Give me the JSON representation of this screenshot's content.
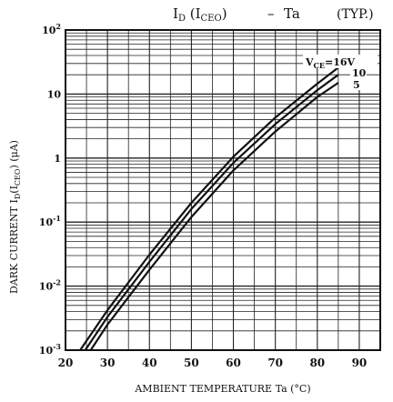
{
  "chart_data": {
    "type": "line",
    "title_main": "I",
    "title_main_sub": "D",
    "title_paren": "(I",
    "title_paren_sub": "CEO",
    "title_paren_close": ")",
    "title_dash": "–",
    "title_var": "Ta",
    "title_note": "(TYP.)",
    "xlabel": "AMBIENT TEMPERATURE   Ta   (°C)",
    "ylabel_text": "DARK CURRENT",
    "ylabel_var": "I",
    "ylabel_var_sub": "D",
    "ylabel_paren": "(I",
    "ylabel_paren_sub": "CEO",
    "ylabel_paren_close": ")",
    "ylabel_unit": "(μA)",
    "xlim": [
      20,
      95
    ],
    "ylim": [
      0.001,
      100
    ],
    "yscale": "log",
    "x_ticks": [
      "20",
      "30",
      "40",
      "50",
      "60",
      "70",
      "80",
      "90"
    ],
    "y_ticks": [
      {
        "base": "10",
        "exp": "2"
      },
      {
        "base": "10",
        "exp": ""
      },
      {
        "base": "1",
        "exp": ""
      },
      {
        "base": "10",
        "exp": "-1"
      },
      {
        "base": "10",
        "exp": "-2"
      },
      {
        "base": "10",
        "exp": "-3"
      }
    ],
    "grid": true,
    "series": [
      {
        "name": "16",
        "x": [
          23.5,
          30,
          40,
          50,
          60,
          70,
          80,
          85
        ],
        "y": [
          0.001,
          0.0042,
          0.031,
          0.2,
          1.05,
          4.3,
          14.5,
          26
        ]
      },
      {
        "name": "10",
        "x": [
          24.7,
          30,
          40,
          50,
          60,
          70,
          80,
          85
        ],
        "y": [
          0.001,
          0.0033,
          0.024,
          0.16,
          0.84,
          3.4,
          11.5,
          20
        ]
      },
      {
        "name": "5",
        "x": [
          26,
          30,
          40,
          50,
          60,
          70,
          80,
          85
        ],
        "y": [
          0.001,
          0.0025,
          0.018,
          0.12,
          0.64,
          2.6,
          9,
          15
        ]
      }
    ],
    "series_label_prefix": "V",
    "series_label_sub": "CE",
    "series_label_suffix": "=16V",
    "series_label_10": "10",
    "series_label_5": "5"
  }
}
